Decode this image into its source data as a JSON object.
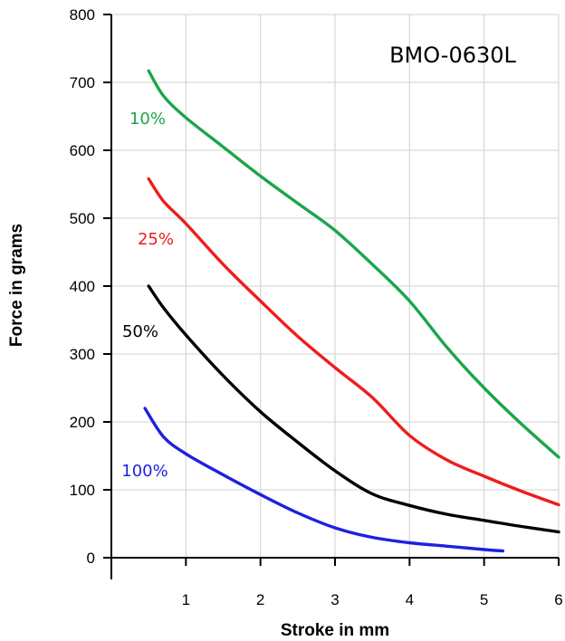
{
  "chart_data": {
    "type": "line",
    "title": "BMO-0630L",
    "xlabel": "Stroke in mm",
    "ylabel": "Force in grams",
    "xlim": [
      0,
      6
    ],
    "ylim": [
      0,
      800
    ],
    "xticks": [
      1,
      2,
      3,
      4,
      5,
      6
    ],
    "yticks": [
      0,
      100,
      200,
      300,
      400,
      500,
      600,
      700,
      800
    ],
    "grid": true,
    "series": [
      {
        "name": "10%",
        "color": "#1aa64a",
        "points": [
          [
            0.5,
            717
          ],
          [
            0.7,
            680
          ],
          [
            1.0,
            648
          ],
          [
            1.5,
            605
          ],
          [
            2.0,
            562
          ],
          [
            2.5,
            522
          ],
          [
            3.0,
            482
          ],
          [
            3.5,
            432
          ],
          [
            4.0,
            378
          ],
          [
            4.5,
            310
          ],
          [
            5.0,
            250
          ],
          [
            5.5,
            197
          ],
          [
            6.0,
            148
          ]
        ]
      },
      {
        "name": "25%",
        "color": "#ee1c1c",
        "points": [
          [
            0.5,
            558
          ],
          [
            0.7,
            525
          ],
          [
            1.0,
            492
          ],
          [
            1.5,
            432
          ],
          [
            2.0,
            378
          ],
          [
            2.5,
            326
          ],
          [
            3.0,
            280
          ],
          [
            3.5,
            236
          ],
          [
            4.0,
            180
          ],
          [
            4.5,
            144
          ],
          [
            5.0,
            120
          ],
          [
            5.5,
            98
          ],
          [
            6.0,
            78
          ]
        ]
      },
      {
        "name": "50%",
        "color": "#000000",
        "points": [
          [
            0.5,
            400
          ],
          [
            0.7,
            368
          ],
          [
            1.0,
            328
          ],
          [
            1.5,
            268
          ],
          [
            2.0,
            215
          ],
          [
            2.5,
            170
          ],
          [
            3.0,
            128
          ],
          [
            3.5,
            94
          ],
          [
            4.0,
            77
          ],
          [
            4.5,
            64
          ],
          [
            5.0,
            55
          ],
          [
            5.5,
            46
          ],
          [
            6.0,
            38
          ]
        ]
      },
      {
        "name": "100%",
        "color": "#1f1fe0",
        "points": [
          [
            0.45,
            220
          ],
          [
            0.7,
            178
          ],
          [
            1.0,
            153
          ],
          [
            1.5,
            122
          ],
          [
            2.0,
            93
          ],
          [
            2.5,
            66
          ],
          [
            3.0,
            44
          ],
          [
            3.5,
            30
          ],
          [
            4.0,
            22
          ],
          [
            4.5,
            17
          ],
          [
            5.0,
            12
          ],
          [
            5.25,
            10
          ]
        ]
      }
    ]
  }
}
